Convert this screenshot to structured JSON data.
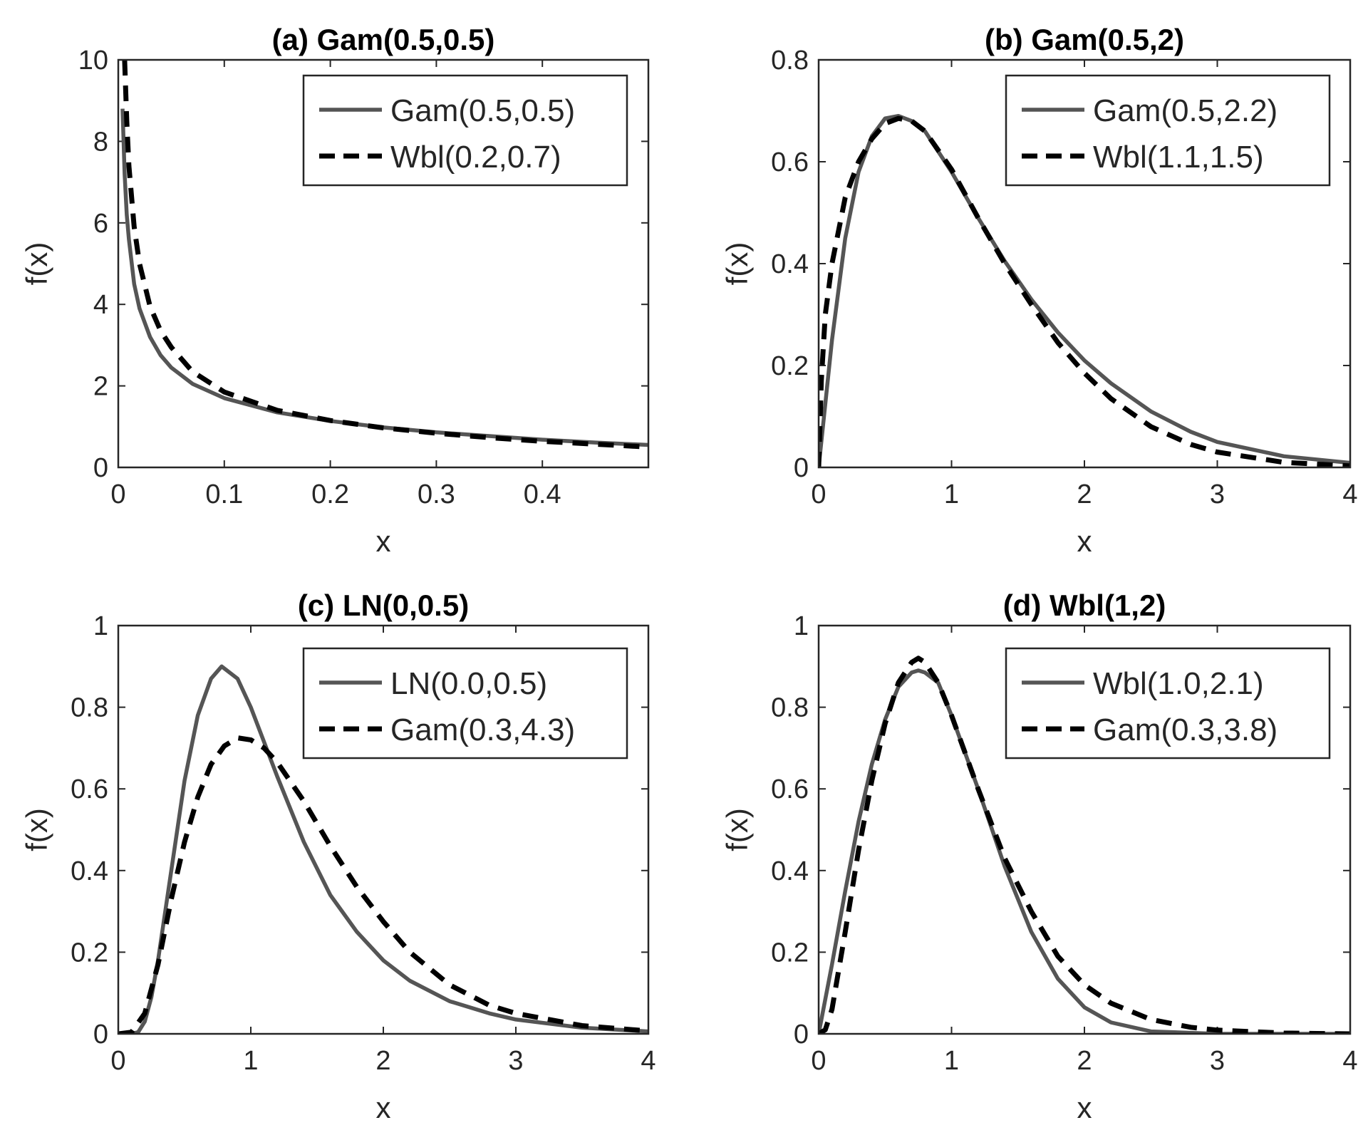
{
  "chart_data": [
    {
      "type": "line",
      "title": "(a) Gam(0.5,0.5)",
      "xlabel": "x",
      "ylabel": "f(x)",
      "xlim": [
        0,
        0.5
      ],
      "ylim": [
        0,
        10
      ],
      "xticks": [
        "0",
        "0.1",
        "0.2",
        "0.3",
        "0.4"
      ],
      "yticks": [
        "0",
        "2",
        "4",
        "6",
        "8",
        "10"
      ],
      "legend_position": "top-right",
      "series": [
        {
          "name": "Gam(0.5,0.5)",
          "style": "solid",
          "color": "#555555",
          "x": [
            0.004,
            0.006,
            0.008,
            0.01,
            0.015,
            0.02,
            0.03,
            0.04,
            0.05,
            0.07,
            0.1,
            0.15,
            0.2,
            0.25,
            0.3,
            0.35,
            0.4,
            0.45,
            0.5
          ],
          "y": [
            8.8,
            7.2,
            6.2,
            5.6,
            4.5,
            3.9,
            3.2,
            2.75,
            2.45,
            2.05,
            1.7,
            1.35,
            1.14,
            0.98,
            0.86,
            0.77,
            0.68,
            0.61,
            0.55
          ]
        },
        {
          "name": "Wbl(0.2,0.7)",
          "style": "dashed",
          "color": "#000000",
          "x": [
            0.006,
            0.008,
            0.01,
            0.015,
            0.02,
            0.03,
            0.04,
            0.05,
            0.07,
            0.1,
            0.15,
            0.2,
            0.25,
            0.3,
            0.35,
            0.4,
            0.45,
            0.5
          ],
          "y": [
            10.0,
            8.5,
            7.4,
            5.9,
            5.0,
            3.95,
            3.35,
            2.95,
            2.35,
            1.85,
            1.4,
            1.15,
            0.97,
            0.84,
            0.73,
            0.64,
            0.57,
            0.5
          ]
        }
      ]
    },
    {
      "type": "line",
      "title": "(b) Gam(0.5,2)",
      "xlabel": "x",
      "ylabel": "f(x)",
      "xlim": [
        0,
        4
      ],
      "ylim": [
        0,
        0.8
      ],
      "xticks": [
        "0",
        "1",
        "2",
        "3",
        "4"
      ],
      "yticks": [
        "0",
        "0.2",
        "0.4",
        "0.6",
        "0.8"
      ],
      "legend_position": "top-right",
      "series": [
        {
          "name": "Gam(0.5,2.2)",
          "style": "solid",
          "color": "#555555",
          "x": [
            0,
            0.1,
            0.2,
            0.3,
            0.4,
            0.5,
            0.6,
            0.7,
            0.8,
            1.0,
            1.2,
            1.4,
            1.6,
            1.8,
            2.0,
            2.2,
            2.5,
            2.8,
            3.0,
            3.5,
            4.0
          ],
          "y": [
            0,
            0.25,
            0.45,
            0.58,
            0.65,
            0.685,
            0.69,
            0.68,
            0.66,
            0.58,
            0.49,
            0.405,
            0.33,
            0.265,
            0.21,
            0.165,
            0.11,
            0.07,
            0.05,
            0.022,
            0.009
          ]
        },
        {
          "name": "Wbl(1.1,1.5)",
          "style": "dashed",
          "color": "#000000",
          "x": [
            0,
            0.02,
            0.05,
            0.1,
            0.2,
            0.3,
            0.4,
            0.5,
            0.6,
            0.7,
            0.8,
            1.0,
            1.2,
            1.4,
            1.6,
            1.8,
            2.0,
            2.2,
            2.5,
            2.8,
            3.0,
            3.5,
            4.0
          ],
          "y": [
            0,
            0.17,
            0.3,
            0.4,
            0.53,
            0.6,
            0.645,
            0.675,
            0.685,
            0.68,
            0.66,
            0.585,
            0.49,
            0.4,
            0.32,
            0.245,
            0.185,
            0.135,
            0.08,
            0.045,
            0.03,
            0.01,
            0.003
          ]
        }
      ]
    },
    {
      "type": "line",
      "title": "(c) LN(0,0.5)",
      "xlabel": "x",
      "ylabel": "f(x)",
      "xlim": [
        0,
        4
      ],
      "ylim": [
        0,
        1
      ],
      "xticks": [
        "0",
        "1",
        "2",
        "3",
        "4"
      ],
      "yticks": [
        "0",
        "0.2",
        "0.4",
        "0.6",
        "0.8",
        "1"
      ],
      "legend_position": "top-right",
      "series": [
        {
          "name": "LN(0.0,0.5)",
          "style": "solid",
          "color": "#555555",
          "x": [
            0,
            0.1,
            0.15,
            0.2,
            0.25,
            0.3,
            0.4,
            0.5,
            0.6,
            0.7,
            0.78,
            0.9,
            1.0,
            1.2,
            1.4,
            1.6,
            1.8,
            2.0,
            2.2,
            2.5,
            2.8,
            3.0,
            3.5,
            4.0
          ],
          "y": [
            0,
            0.0,
            0.004,
            0.03,
            0.09,
            0.18,
            0.4,
            0.62,
            0.78,
            0.87,
            0.9,
            0.87,
            0.8,
            0.63,
            0.47,
            0.34,
            0.25,
            0.18,
            0.13,
            0.08,
            0.05,
            0.035,
            0.015,
            0.006
          ]
        },
        {
          "name": "Gam(0.3,4.3)",
          "style": "dashed",
          "color": "#000000",
          "x": [
            0,
            0.1,
            0.2,
            0.3,
            0.4,
            0.5,
            0.6,
            0.7,
            0.8,
            0.9,
            1.0,
            1.1,
            1.2,
            1.4,
            1.6,
            1.8,
            2.0,
            2.2,
            2.5,
            2.8,
            3.0,
            3.5,
            4.0
          ],
          "y": [
            0,
            0.004,
            0.05,
            0.17,
            0.33,
            0.47,
            0.58,
            0.66,
            0.705,
            0.725,
            0.72,
            0.7,
            0.665,
            0.57,
            0.46,
            0.36,
            0.275,
            0.2,
            0.12,
            0.07,
            0.05,
            0.02,
            0.007
          ]
        }
      ]
    },
    {
      "type": "line",
      "title": "(d) Wbl(1,2)",
      "xlabel": "x",
      "ylabel": "f(x)",
      "xlim": [
        0,
        4
      ],
      "ylim": [
        0,
        1
      ],
      "xticks": [
        "0",
        "1",
        "2",
        "3",
        "4"
      ],
      "yticks": [
        "0",
        "0.2",
        "0.4",
        "0.6",
        "0.8",
        "1"
      ],
      "legend_position": "top-right",
      "series": [
        {
          "name": "Wbl(1.0,2.1)",
          "style": "solid",
          "color": "#555555",
          "x": [
            0,
            0.1,
            0.2,
            0.3,
            0.4,
            0.5,
            0.6,
            0.7,
            0.75,
            0.8,
            0.9,
            1.0,
            1.2,
            1.4,
            1.6,
            1.8,
            2.0,
            2.2,
            2.5,
            3.0,
            3.5,
            4.0
          ],
          "y": [
            0,
            0.17,
            0.35,
            0.52,
            0.66,
            0.77,
            0.85,
            0.885,
            0.89,
            0.885,
            0.86,
            0.78,
            0.6,
            0.41,
            0.25,
            0.135,
            0.065,
            0.028,
            0.006,
            0.0,
            0.0,
            0.0
          ]
        },
        {
          "name": "Gam(0.3,3.8)",
          "style": "dashed",
          "color": "#000000",
          "x": [
            0,
            0.05,
            0.1,
            0.2,
            0.3,
            0.4,
            0.5,
            0.6,
            0.7,
            0.75,
            0.8,
            0.9,
            1.0,
            1.2,
            1.4,
            1.6,
            1.8,
            2.0,
            2.2,
            2.5,
            2.8,
            3.0,
            3.5,
            4.0
          ],
          "y": [
            0,
            0.01,
            0.06,
            0.25,
            0.45,
            0.62,
            0.76,
            0.86,
            0.91,
            0.92,
            0.91,
            0.86,
            0.78,
            0.6,
            0.43,
            0.3,
            0.19,
            0.12,
            0.075,
            0.035,
            0.016,
            0.009,
            0.002,
            0.0
          ]
        }
      ]
    }
  ]
}
